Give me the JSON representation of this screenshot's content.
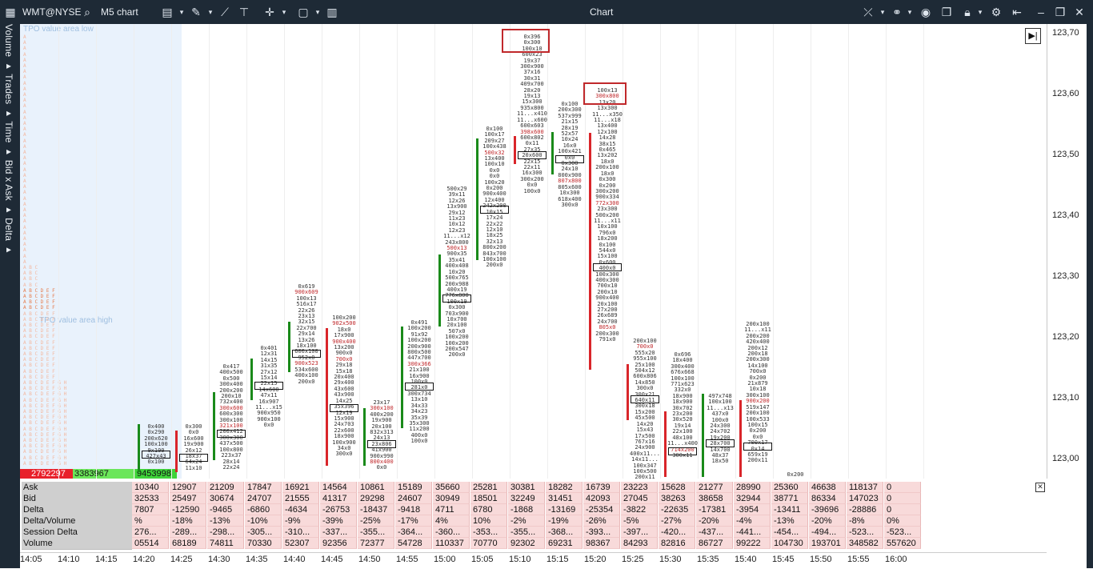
{
  "titlebar": {
    "symbol": "WMT@NYSE",
    "timeframe": "M5 chart",
    "title": "Chart",
    "icons": [
      "search-icon",
      "layout-icon",
      "pencil-icon",
      "indicators-icon",
      "template-icon",
      "crosshair-icon",
      "window-icon",
      "panel-icon",
      "cursor-icon",
      "link-icon",
      "camera-icon",
      "copy-icon",
      "lock-icon",
      "settings-icon",
      "pin-icon",
      "minimize-icon",
      "maximize-icon",
      "close-icon"
    ]
  },
  "leftbar": {
    "label": "Volume ▸ Trades ▸ Time ▸ Bid x Ask ▸ Delta ▸"
  },
  "tpo": {
    "low_label": "TPO value area low",
    "high_label": "TPO value area high"
  },
  "price_axis": {
    "ticks": [
      "123,70",
      "123,60",
      "123,50",
      "123,40",
      "123,30",
      "123,20",
      "123,10",
      "123,00"
    ]
  },
  "colors": {
    "up": "#1a8a1a",
    "down": "#d9252a",
    "ask_bg": "#f8dada",
    "label_bg": "#cfcfcf",
    "highlight": "#c0282b"
  },
  "volume_profile": {
    "red_value": "2792297",
    "green_value": "3383967",
    "total_value": "9453998"
  },
  "stats": {
    "labels": [
      "Ask",
      "Bid",
      "Delta",
      "Delta/Volume",
      "Session Delta",
      "Volume"
    ],
    "rows": [
      [
        "10340",
        "12907",
        "21209",
        "17847",
        "16921",
        "14564",
        "10861",
        "15189",
        "35660",
        "25281",
        "30381",
        "18282",
        "16739",
        "23223",
        "15628",
        "21277",
        "28990",
        "25360",
        "46638",
        "118137",
        "0"
      ],
      [
        "32533",
        "25497",
        "30674",
        "24707",
        "21555",
        "41317",
        "29298",
        "24607",
        "30949",
        "18501",
        "32249",
        "31451",
        "42093",
        "27045",
        "38263",
        "38658",
        "32944",
        "38771",
        "86334",
        "147023",
        "0"
      ],
      [
        "7807",
        "-12590",
        "-9465",
        "-6860",
        "-4634",
        "-26753",
        "-18437",
        "-9418",
        "4711",
        "6780",
        "-1868",
        "-13169",
        "-25354",
        "-3822",
        "-22635",
        "-17381",
        "-3954",
        "-13411",
        "-39696",
        "-28886",
        "0"
      ],
      [
        "%",
        "-18%",
        "-13%",
        "-10%",
        "-9%",
        "-39%",
        "-25%",
        "-17%",
        "4%",
        "10%",
        "-2%",
        "-19%",
        "-26%",
        "-5%",
        "-27%",
        "-20%",
        "-4%",
        "-13%",
        "-20%",
        "-8%",
        "0%"
      ],
      [
        "276...",
        "-289...",
        "-298...",
        "-305...",
        "-310...",
        "-337...",
        "-355...",
        "-364...",
        "-360...",
        "-353...",
        "-355...",
        "-368...",
        "-393...",
        "-397...",
        "-420...",
        "-437...",
        "-441...",
        "-454...",
        "-494...",
        "-523...",
        "-523..."
      ],
      [
        "05514",
        "68189",
        "74811",
        "70330",
        "52307",
        "92356",
        "72377",
        "54728",
        "110337",
        "70770",
        "92302",
        "69231",
        "98367",
        "84293",
        "82816",
        "86727",
        "99222",
        "104730",
        "193701",
        "348582",
        "557620"
      ]
    ]
  },
  "time_axis": [
    "14:05",
    "14:10",
    "14:15",
    "14:20",
    "14:25",
    "14:30",
    "14:35",
    "14:40",
    "14:45",
    "14:50",
    "14:55",
    "15:00",
    "15:05",
    "15:10",
    "15:15",
    "15:20",
    "15:25",
    "15:30",
    "15:35",
    "15:40",
    "15:45",
    "15:50",
    "15:55",
    "16:00"
  ],
  "clusters": [
    {
      "time": "14:20",
      "lines": [
        "0x400",
        "0x290",
        "200x620",
        "100x100",
        "9x100",
        "427x43",
        "0x100"
      ]
    },
    {
      "time": "14:25",
      "lines": [
        "0x300",
        "0x0",
        "16x600",
        "19x900",
        "26x12",
        "18x37",
        "64x24",
        "11x10"
      ]
    },
    {
      "time": "14:30",
      "lines": [
        "0x417",
        "400x500",
        "0x500",
        "300x400",
        "200x200",
        "200x10",
        "732x400",
        "300x600",
        "600x300",
        "300x100",
        "321x100",
        "200x412",
        "300x300",
        "437x500",
        "100x800",
        "223x37",
        "28x14",
        "22x24"
      ]
    },
    {
      "time": "14:35",
      "lines": [
        "0x401",
        "12x31",
        "14x15",
        "31x35",
        "27x12",
        "15x14",
        "22x15",
        "14x600",
        "47x11",
        "16x907",
        "11...x15",
        "900x950",
        "900x100",
        "0x0"
      ]
    },
    {
      "time": "14:40",
      "lines": [
        "0x619",
        "900x609",
        "100x13",
        "516x17",
        "22x26",
        "23x13",
        "32x15",
        "22x700",
        "29x14",
        "13x26",
        "18x100",
        "600x100",
        "952x0",
        "900x523",
        "534x600",
        "400x100",
        "200x0"
      ]
    },
    {
      "time": "14:45",
      "lines": [
        "100x200",
        "902x500",
        "18x0",
        "17x900",
        "900x400",
        "13x200",
        "900x0",
        "700x0",
        "29x18",
        "15x18",
        "20x400",
        "29x400",
        "43x600",
        "43x900",
        "14x25",
        "35x396",
        "12x19",
        "15x900",
        "24x703",
        "22x600",
        "18x900",
        "100x900",
        "34x0",
        "300x0"
      ]
    },
    {
      "time": "14:50",
      "lines": [
        "23x17",
        "300x100",
        "400x200",
        "19x900",
        "20x100",
        "832x313",
        "24x13",
        "23x806",
        "41x900",
        "900x990",
        "800x400",
        "0x0"
      ]
    },
    {
      "time": "14:55",
      "lines": [
        "0x491",
        "100x200",
        "91x92",
        "100x200",
        "200x900",
        "800x500",
        "447x700",
        "300x366",
        "21x100",
        "16x900",
        "100x0",
        "281x0",
        "300x734",
        "13x10",
        "34x33",
        "34x23",
        "35x39",
        "35x300",
        "11x200",
        "400x0",
        "100x0"
      ]
    },
    {
      "time": "15:00",
      "lines": [
        "500x29",
        "39x11",
        "12x26",
        "13x900",
        "29x12",
        "11x23",
        "10x12",
        "12x23",
        "11...x12",
        "243x800",
        "500x13",
        "900x35",
        "35x41",
        "400x408",
        "10x20",
        "500x765",
        "200x988",
        "400x19",
        "776x800",
        "100x19",
        "0x300",
        "703x900",
        "10x700",
        "20x100",
        "507x0",
        "100x200",
        "100x200",
        "200x547",
        "200x0"
      ]
    },
    {
      "time": "15:05",
      "lines": [
        "0x100",
        "100x17",
        "209x27",
        "100x438",
        "500x32",
        "13x400",
        "100x10",
        "0x0",
        "0x0",
        "100x20",
        "0x200",
        "900x400",
        "12x400",
        "242x200",
        "10x15",
        "17x24",
        "22x22",
        "12x10",
        "18x25",
        "32x13",
        "800x200",
        "843x700",
        "100x100",
        "200x0"
      ]
    },
    {
      "time": "15:10",
      "lines": [
        "0x396",
        "0x300",
        "100x10",
        "600x23",
        "19x37",
        "300x900",
        "37x16",
        "30x31",
        "409x700",
        "28x20",
        "19x13",
        "15x300",
        "935x800",
        "11...x410",
        "11...x600",
        "600x603",
        "398x600",
        "600x802",
        "0x11",
        "27x35",
        "20x600",
        "22x15",
        "22x11",
        "16x300",
        "300x200",
        "0x0",
        "100x0"
      ]
    },
    {
      "time": "15:15",
      "lines": [
        "0x100",
        "200x300",
        "537x999",
        "21x15",
        "28x19",
        "52x57",
        "10x24",
        "16x0",
        "100x421",
        "0x0",
        "0x300",
        "24x10",
        "800x900",
        "807x800",
        "805x600",
        "10x300",
        "618x400",
        "300x0"
      ]
    },
    {
      "time": "15:20",
      "lines": [
        "100x13",
        "300x800",
        "13x20",
        "13x300",
        "11...x350",
        "11...x18",
        "13x400",
        "12x100",
        "14x28",
        "38x15",
        "0x465",
        "13x202",
        "18x0",
        "200x100",
        "18x0",
        "0x300",
        "0x200",
        "300x200",
        "900x334",
        "772x300",
        "23x300",
        "500x200",
        "11...x11",
        "10x100",
        "796x0",
        "18x200",
        "0x100",
        "544x0",
        "15x100",
        "0x600",
        "400x0",
        "100x300",
        "400x300",
        "700x10",
        "200x10",
        "900x400",
        "20x100",
        "27x200",
        "26x689",
        "24x700",
        "805x0",
        "200x300",
        "791x0"
      ]
    },
    {
      "time": "15:25",
      "lines": [
        "200x100",
        "700x0",
        "555x20",
        "955x100",
        "25x100",
        "504x12",
        "600x806",
        "14x850",
        "300x0",
        "300x21",
        "640x11",
        "300x18",
        "15x200",
        "45x500",
        "14x20",
        "15x43",
        "17x500",
        "767x16",
        "24x900",
        "400x11...",
        "14x11...",
        "100x347",
        "100x500",
        "200x11"
      ]
    },
    {
      "time": "15:30",
      "lines": [
        "0x696",
        "18x400",
        "300x400",
        "676x668",
        "100x100",
        "771x623",
        "332x0",
        "18x900",
        "18x900",
        "30x702",
        "23x200",
        "30x520",
        "19x14",
        "22x100",
        "48x100",
        "11...x400",
        "714x200",
        "300x11"
      ]
    },
    {
      "time": "15:35",
      "lines": [
        "497x748",
        "100x100",
        "11...x13",
        "437x0",
        "100x0",
        "24x300",
        "24x702",
        "19x200",
        "28x700",
        "14x700",
        "48x37",
        "18x50"
      ]
    },
    {
      "time": "15:40",
      "lines": [
        "200x100",
        "11...x11",
        "200x200",
        "420x400",
        "200x12",
        "200x18",
        "200x300",
        "14x100",
        "700x0",
        "0x200",
        "21x879",
        "10x18",
        "300x100",
        "900x200",
        "519x147",
        "200x100",
        "100x533",
        "100x15",
        "0x200",
        "0x0",
        "700x17",
        "0x14",
        "659x19",
        "200x11"
      ]
    },
    {
      "time": "15:45",
      "lines": [
        "0x200"
      ]
    }
  ]
}
